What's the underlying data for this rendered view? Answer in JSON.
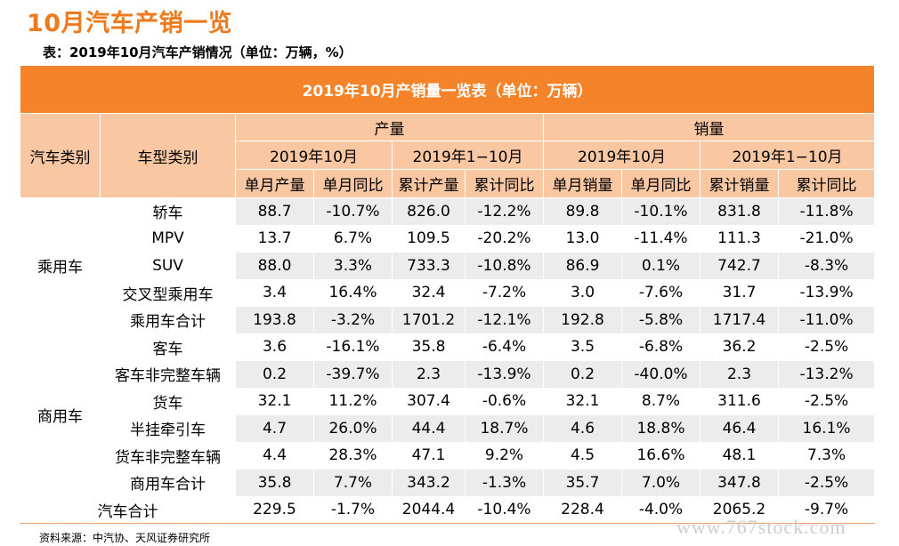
{
  "page_title": "10月汽车产销一览",
  "subtitle": "表：2019年10月汽车产销情况（单位：万辆，%）",
  "table": {
    "banner": "2019年10月产销量一览表（单位：万辆）",
    "col_vehicle_category": "汽车类别",
    "col_model_category": "车型类别",
    "group_production": "产量",
    "group_sales": "销量",
    "period_month": "2019年10月",
    "period_ytd": "2019年1−10月",
    "metrics": [
      "单月产量",
      "单月同比",
      "累计产量",
      "累计同比",
      "单月销量",
      "单月同比",
      "累计销量",
      "累计同比"
    ],
    "categories": [
      {
        "name": "乘用车",
        "rows": [
          {
            "model": "轿车",
            "values": [
              "88.7",
              "-10.7%",
              "826.0",
              "-12.2%",
              "89.8",
              "-10.1%",
              "831.8",
              "-11.8%"
            ]
          },
          {
            "model": "MPV",
            "values": [
              "13.7",
              "6.7%",
              "109.5",
              "-20.2%",
              "13.0",
              "-11.4%",
              "111.3",
              "-21.0%"
            ]
          },
          {
            "model": "SUV",
            "values": [
              "88.0",
              "3.3%",
              "733.3",
              "-10.8%",
              "86.9",
              "0.1%",
              "742.7",
              "-8.3%"
            ]
          },
          {
            "model": "交叉型乘用车",
            "values": [
              "3.4",
              "16.4%",
              "32.4",
              "-7.2%",
              "3.0",
              "-7.6%",
              "31.7",
              "-13.9%"
            ]
          },
          {
            "model": "乘用车合计",
            "values": [
              "193.8",
              "-3.2%",
              "1701.2",
              "-12.1%",
              "192.8",
              "-5.8%",
              "1717.4",
              "-11.0%"
            ]
          }
        ]
      },
      {
        "name": "商用车",
        "rows": [
          {
            "model": "客车",
            "values": [
              "3.6",
              "-16.1%",
              "35.8",
              "-6.4%",
              "3.5",
              "-6.8%",
              "36.2",
              "-2.5%"
            ]
          },
          {
            "model": "客车非完整车辆",
            "values": [
              "0.2",
              "-39.7%",
              "2.3",
              "-13.9%",
              "0.2",
              "-40.0%",
              "2.3",
              "-13.2%"
            ]
          },
          {
            "model": "货车",
            "values": [
              "32.1",
              "11.2%",
              "307.4",
              "-0.6%",
              "32.1",
              "8.7%",
              "311.6",
              "-2.5%"
            ]
          },
          {
            "model": "半挂牵引车",
            "values": [
              "4.7",
              "26.0%",
              "44.4",
              "18.7%",
              "4.6",
              "18.8%",
              "46.4",
              "16.1%"
            ]
          },
          {
            "model": "货车非完整车辆",
            "values": [
              "4.4",
              "28.3%",
              "47.1",
              "9.2%",
              "4.5",
              "16.6%",
              "48.1",
              "7.3%"
            ]
          },
          {
            "model": "商用车合计",
            "values": [
              "35.8",
              "7.7%",
              "343.2",
              "-1.3%",
              "35.7",
              "7.0%",
              "347.8",
              "-2.5%"
            ]
          }
        ]
      }
    ],
    "grand_total": {
      "label": "汽车合计",
      "values": [
        "229.5",
        "-1.7%",
        "2044.4",
        "-10.4%",
        "228.4",
        "-4.0%",
        "2065.2",
        "-9.7%"
      ]
    }
  },
  "source": "资料来源：中汽协、天风证券研究所",
  "watermark": "www.767stock.com",
  "colors": {
    "accent": "#f4832a",
    "title": "#ef7a1e",
    "header_fill": "#f9c7a2",
    "row_shade": "#ececec"
  }
}
